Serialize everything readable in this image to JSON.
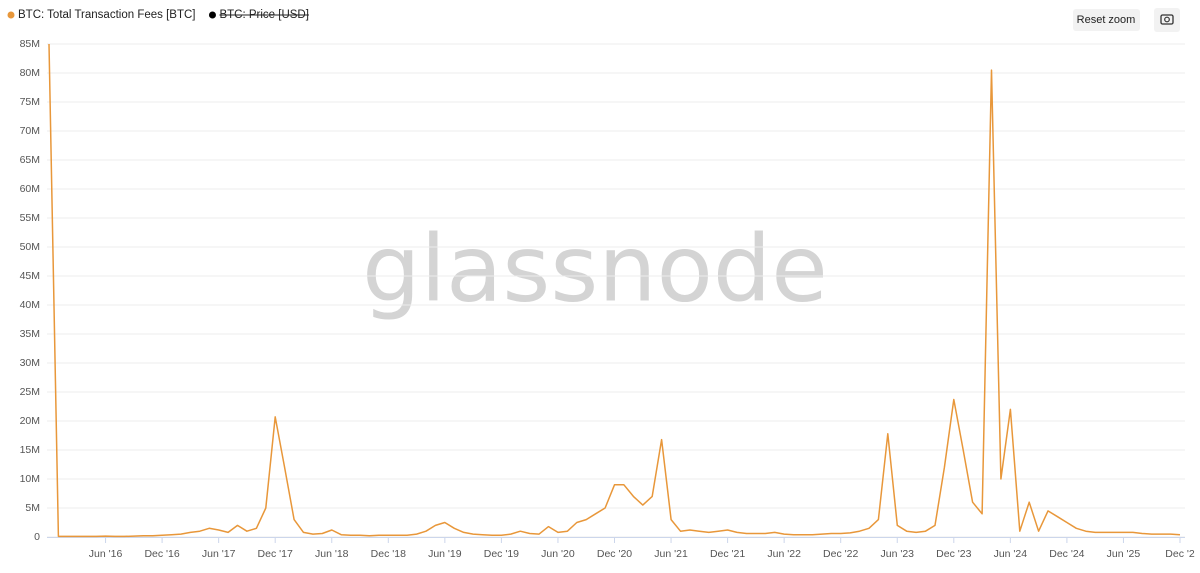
{
  "chart_data": {
    "type": "line",
    "watermark": "glassnode",
    "buttons": {
      "reset": "Reset zoom"
    },
    "x": [
      "2015-12",
      "2016-01",
      "2016-02",
      "2016-03",
      "2016-04",
      "2016-05",
      "2016-06",
      "2016-07",
      "2016-08",
      "2016-09",
      "2016-10",
      "2016-11",
      "2016-12",
      "2017-01",
      "2017-02",
      "2017-03",
      "2017-04",
      "2017-05",
      "2017-06",
      "2017-07",
      "2017-08",
      "2017-09",
      "2017-10",
      "2017-11",
      "2017-12",
      "2018-01",
      "2018-02",
      "2018-03",
      "2018-04",
      "2018-05",
      "2018-06",
      "2018-07",
      "2018-08",
      "2018-09",
      "2018-10",
      "2018-11",
      "2018-12",
      "2019-01",
      "2019-02",
      "2019-03",
      "2019-04",
      "2019-05",
      "2019-06",
      "2019-07",
      "2019-08",
      "2019-09",
      "2019-10",
      "2019-11",
      "2019-12",
      "2020-01",
      "2020-02",
      "2020-03",
      "2020-04",
      "2020-05",
      "2020-06",
      "2020-07",
      "2020-08",
      "2020-09",
      "2020-10",
      "2020-11",
      "2020-12",
      "2021-01",
      "2021-02",
      "2021-03",
      "2021-04",
      "2021-05",
      "2021-06",
      "2021-07",
      "2021-08",
      "2021-09",
      "2021-10",
      "2021-11",
      "2021-12",
      "2022-01",
      "2022-02",
      "2022-03",
      "2022-04",
      "2022-05",
      "2022-06",
      "2022-07",
      "2022-08",
      "2022-09",
      "2022-10",
      "2022-11",
      "2022-12",
      "2023-01",
      "2023-02",
      "2023-03",
      "2023-04",
      "2023-05",
      "2023-06",
      "2023-07",
      "2023-08",
      "2023-09",
      "2023-10",
      "2023-11",
      "2023-12",
      "2024-01",
      "2024-02",
      "2024-03",
      "2024-04",
      "2024-05",
      "2024-06",
      "2024-07",
      "2024-08",
      "2024-09",
      "2024-10",
      "2024-11",
      "2024-12",
      "2025-01",
      "2025-02",
      "2025-03",
      "2025-04",
      "2025-05",
      "2025-06",
      "2025-07",
      "2025-08",
      "2025-09",
      "2025-10",
      "2025-11",
      "2025-12"
    ],
    "series": [
      {
        "name": "BTC: Total Transaction Fees [BTC]",
        "color": "#e8973a",
        "values": [
          85000000,
          100000,
          100000,
          100000,
          100000,
          100000,
          150000,
          100000,
          100000,
          150000,
          200000,
          200000,
          300000,
          400000,
          500000,
          800000,
          1000000,
          1500000,
          1200000,
          800000,
          2000000,
          1000000,
          1500000,
          5000000,
          20700000,
          12000000,
          3000000,
          800000,
          500000,
          600000,
          1200000,
          400000,
          300000,
          300000,
          200000,
          300000,
          300000,
          300000,
          300000,
          500000,
          1000000,
          2000000,
          2500000,
          1500000,
          800000,
          500000,
          400000,
          300000,
          300000,
          500000,
          1000000,
          600000,
          500000,
          1800000,
          800000,
          1000000,
          2500000,
          3000000,
          4000000,
          5000000,
          9000000,
          9000000,
          7000000,
          5500000,
          7000000,
          16800000,
          3000000,
          1000000,
          1200000,
          1000000,
          800000,
          1000000,
          1200000,
          800000,
          600000,
          600000,
          600000,
          800000,
          500000,
          400000,
          400000,
          400000,
          500000,
          600000,
          600000,
          700000,
          1000000,
          1500000,
          3000000,
          17800000,
          2000000,
          1000000,
          800000,
          1000000,
          2000000,
          12000000,
          23700000,
          15000000,
          6000000,
          4000000,
          80500000,
          10000000,
          22000000,
          1000000,
          6000000,
          1000000,
          4500000,
          3500000,
          2500000,
          1500000,
          1000000,
          800000,
          800000,
          800000,
          800000,
          800000,
          600000,
          500000,
          500000,
          500000,
          400000
        ]
      },
      {
        "name": "BTC: Price [USD]",
        "color": "#000000",
        "hidden": true
      }
    ],
    "xlim": [
      "2015-12",
      "2025-12"
    ],
    "xticks": [
      {
        "value": "2016-06",
        "label": "Jun '16"
      },
      {
        "value": "2016-12",
        "label": "Dec '16"
      },
      {
        "value": "2017-06",
        "label": "Jun '17"
      },
      {
        "value": "2017-12",
        "label": "Dec '17"
      },
      {
        "value": "2018-06",
        "label": "Jun '18"
      },
      {
        "value": "2018-12",
        "label": "Dec '18"
      },
      {
        "value": "2019-06",
        "label": "Jun '19"
      },
      {
        "value": "2019-12",
        "label": "Dec '19"
      },
      {
        "value": "2020-06",
        "label": "Jun '20"
      },
      {
        "value": "2020-12",
        "label": "Dec '20"
      },
      {
        "value": "2021-06",
        "label": "Jun '21"
      },
      {
        "value": "2021-12",
        "label": "Dec '21"
      },
      {
        "value": "2022-06",
        "label": "Jun '22"
      },
      {
        "value": "2022-12",
        "label": "Dec '22"
      },
      {
        "value": "2023-06",
        "label": "Jun '23"
      },
      {
        "value": "2023-12",
        "label": "Dec '23"
      },
      {
        "value": "2024-06",
        "label": "Jun '24"
      },
      {
        "value": "2024-12",
        "label": "Dec '24"
      },
      {
        "value": "2025-06",
        "label": "Jun '25"
      },
      {
        "value": "2025-12",
        "label": "Dec '2"
      }
    ],
    "ylim": [
      0,
      85000000
    ],
    "yticks": [
      0,
      {
        "value": 5000000,
        "label": "5M"
      },
      {
        "value": 10000000,
        "label": "10M"
      },
      {
        "value": 15000000,
        "label": "15M"
      },
      {
        "value": 20000000,
        "label": "20M"
      },
      {
        "value": 25000000,
        "label": "25M"
      },
      {
        "value": 30000000,
        "label": "30M"
      },
      {
        "value": 35000000,
        "label": "35M"
      },
      {
        "value": 40000000,
        "label": "40M"
      },
      {
        "value": 45000000,
        "label": "45M"
      },
      {
        "value": 50000000,
        "label": "50M"
      },
      {
        "value": 55000000,
        "label": "55M"
      },
      {
        "value": 60000000,
        "label": "60M"
      },
      {
        "value": 65000000,
        "label": "65M"
      },
      {
        "value": 70000000,
        "label": "70M"
      },
      {
        "value": 75000000,
        "label": "75M"
      },
      {
        "value": 80000000,
        "label": "80M"
      },
      {
        "value": 85000000,
        "label": "85M"
      }
    ],
    "grid": true
  }
}
